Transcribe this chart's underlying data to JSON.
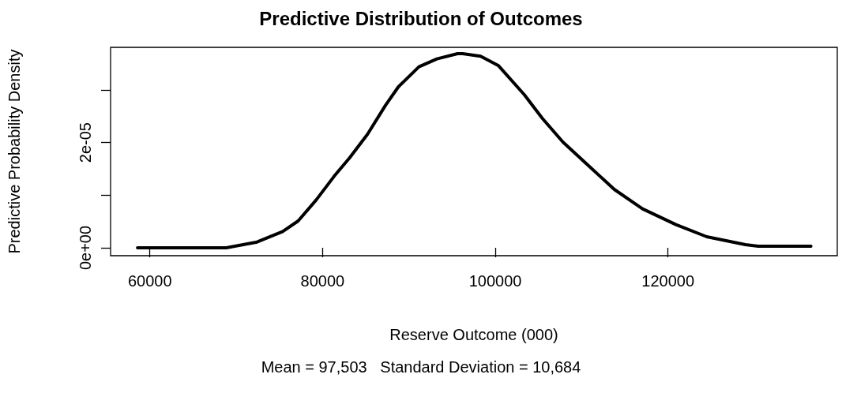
{
  "chart_data": {
    "type": "line",
    "title": "Predictive Distribution of Outcomes",
    "xlabel": "Reserve Outcome (000)",
    "ylabel": "Predictive Probability Density",
    "annotations": [
      "Mean = 97,503   Standard Deviation = 10,684"
    ],
    "x": [
      58570,
      68840,
      72410,
      75380,
      77170,
      79260,
      81340,
      83130,
      85210,
      87290,
      88780,
      91160,
      93240,
      95630,
      96220,
      98300,
      100380,
      103360,
      105450,
      107830,
      110800,
      113780,
      117050,
      120920,
      124490,
      128960,
      130450,
      136550
    ],
    "series": [
      {
        "color": "#000000",
        "values": [
          0,
          0,
          1.1e-06,
          3.1e-06,
          5.1e-06,
          9.1e-06,
          1.36e-05,
          1.71e-05,
          2.16e-05,
          2.71e-05,
          3.06e-05,
          3.44e-05,
          3.59e-05,
          3.69e-05,
          3.69e-05,
          3.64e-05,
          3.46e-05,
          2.91e-05,
          2.46e-05,
          2.01e-05,
          1.56e-05,
          1.11e-05,
          7.4e-06,
          4.4e-06,
          2.1e-06,
          6e-07,
          3e-07,
          3e-07
        ]
      }
    ],
    "xlim": [
      55450,
      139600
    ],
    "xticks": [
      60000,
      80000,
      100000,
      120000
    ],
    "ylim": [
      -1.5e-06,
      3.81e-05
    ],
    "yticks": [
      {
        "value": 0,
        "label": "0e+00"
      },
      {
        "value": 1e-05,
        "label": null
      },
      {
        "value": 2e-05,
        "label": "2e-05"
      },
      {
        "value": 3e-05,
        "label": null
      }
    ],
    "marker": "none",
    "line_style": "solid"
  }
}
